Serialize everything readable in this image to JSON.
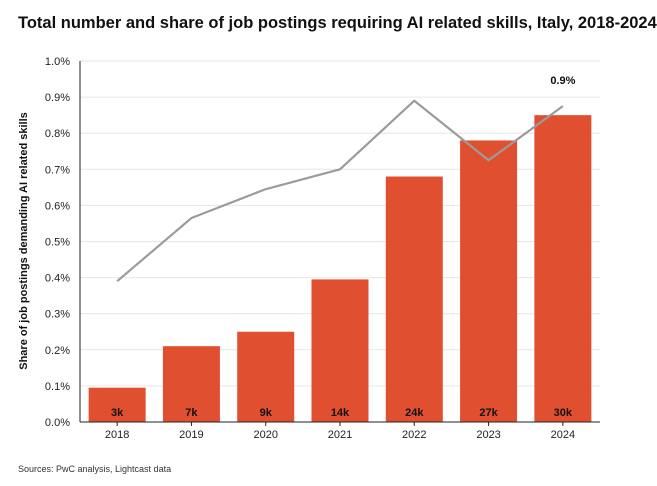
{
  "title": "Total number and share of job postings requiring AI related skills, Italy, 2018-2024",
  "source": "Sources: PwC analysis, Lightcast data",
  "colors": {
    "bar": "#e05030",
    "line": "#9b9b9b",
    "grid": "#e6e6e6",
    "axis": "#222222"
  },
  "chart_data": {
    "type": "bar",
    "categories": [
      "2018",
      "2019",
      "2020",
      "2021",
      "2022",
      "2023",
      "2024"
    ],
    "series": [
      {
        "type": "bar",
        "values": [
          0.095,
          0.21,
          0.25,
          0.395,
          0.68,
          0.78,
          0.85
        ],
        "labels": [
          "3k",
          "7k",
          "9k",
          "14k",
          "24k",
          "27k",
          "30k"
        ]
      },
      {
        "type": "line",
        "values": [
          0.39,
          0.565,
          0.645,
          0.7,
          0.89,
          0.725,
          0.875
        ]
      }
    ],
    "ylabel": "Share of job postings demanding AI related skills",
    "ylim": [
      0,
      1.0
    ],
    "yticks": [
      "0.0%",
      "0.1%",
      "0.2%",
      "0.3%",
      "0.4%",
      "0.5%",
      "0.6%",
      "0.7%",
      "0.8%",
      "0.9%",
      "1.0%"
    ],
    "annotation": "0.9%",
    "grid": true
  }
}
